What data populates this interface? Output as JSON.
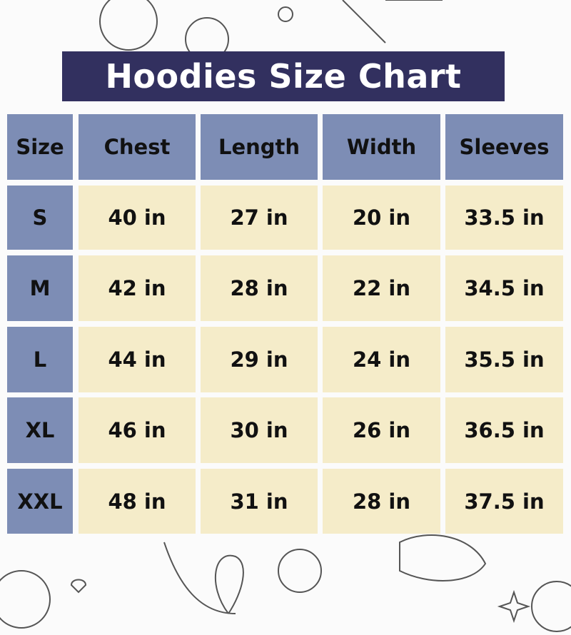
{
  "title": "Hoodies Size Chart",
  "colors": {
    "title_bg": "#32305f",
    "header_bg": "#7d8db5",
    "cell_bg": "#f5ecc9"
  },
  "chart_data": {
    "type": "table",
    "title": "Hoodies Size Chart",
    "columns": [
      "Size",
      "Chest",
      "Length",
      "Width",
      "Sleeves"
    ],
    "rows": [
      [
        "S",
        "40 in",
        "27 in",
        "20 in",
        "33.5 in"
      ],
      [
        "M",
        "42 in",
        "28 in",
        "22 in",
        "34.5 in"
      ],
      [
        "L",
        "44 in",
        "29 in",
        "24 in",
        "35.5 in"
      ],
      [
        "XL",
        "46 in",
        "30 in",
        "26 in",
        "36.5 in"
      ],
      [
        "XXL",
        "48 in",
        "31 in",
        "28 in",
        "37.5 in"
      ]
    ]
  }
}
